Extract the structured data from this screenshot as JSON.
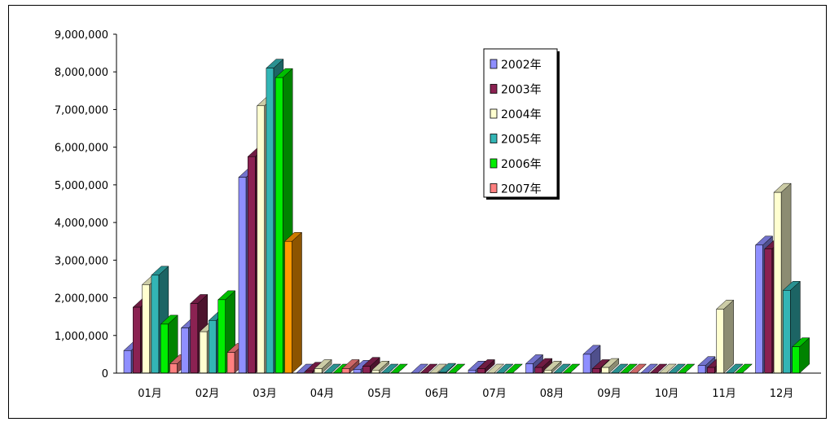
{
  "chart_data": {
    "type": "bar",
    "title": "",
    "xlabel": "",
    "ylabel": "",
    "ylim": [
      0,
      9000000
    ],
    "y_ticks": [
      "0",
      "1,000,000",
      "2,000,000",
      "3,000,000",
      "4,000,000",
      "5,000,000",
      "6,000,000",
      "7,000,000",
      "8,000,000",
      "9,000,000"
    ],
    "categories": [
      "01月",
      "02月",
      "03月",
      "04月",
      "05月",
      "06月",
      "07月",
      "08月",
      "09月",
      "10月",
      "11月",
      "12月"
    ],
    "legend_position": "top-right",
    "grid": false,
    "three_d": true,
    "series": [
      {
        "name": "2002年",
        "color": "#8f8fff",
        "values": [
          600000,
          1200000,
          5200000,
          0,
          100000,
          0,
          80000,
          250000,
          500000,
          0,
          200000,
          3400000
        ]
      },
      {
        "name": "2003年",
        "color": "#8b2252",
        "values": [
          1750000,
          1850000,
          5750000,
          50000,
          180000,
          0,
          120000,
          150000,
          120000,
          0,
          150000,
          3300000
        ]
      },
      {
        "name": "2004年",
        "color": "#ffffd0",
        "values": [
          2350000,
          1100000,
          7100000,
          120000,
          80000,
          0,
          0,
          80000,
          150000,
          0,
          1700000,
          4800000
        ]
      },
      {
        "name": "2005年",
        "color": "#33b5b5",
        "values": [
          2600000,
          1400000,
          8100000,
          0,
          0,
          20000,
          0,
          0,
          0,
          0,
          0,
          2200000
        ]
      },
      {
        "name": "2006年",
        "color": "#00ee00",
        "values": [
          1300000,
          1950000,
          7850000,
          0,
          0,
          0,
          0,
          0,
          0,
          0,
          0,
          700000
        ]
      },
      {
        "name": "2007年",
        "color": "#ff8080",
        "values": [
          250000,
          550000,
          null,
          120000,
          null,
          null,
          null,
          null,
          0,
          null,
          null,
          null
        ]
      }
    ],
    "special_bar_colors": [
      {
        "category": "03月",
        "series": "2007年",
        "value": 3500000,
        "color": "#ff9900"
      }
    ]
  }
}
